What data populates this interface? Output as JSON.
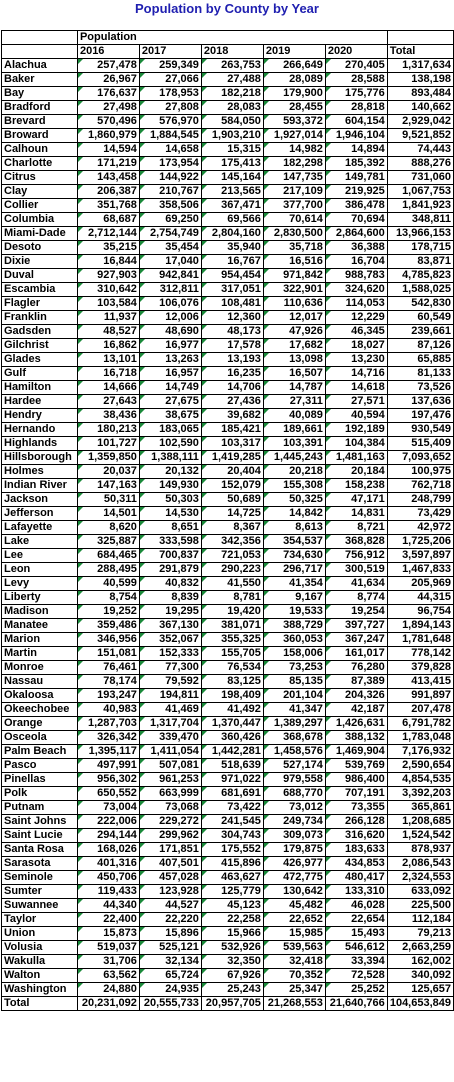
{
  "title": "Population by County by Year",
  "header": {
    "group_label": "Population",
    "years": [
      "2016",
      "2017",
      "2018",
      "2019",
      "2020"
    ],
    "total_label": "Total"
  },
  "rows": [
    {
      "county": "Alachua",
      "values": [
        "257,478",
        "259,349",
        "263,753",
        "266,649",
        "270,405"
      ],
      "total": "1,317,634"
    },
    {
      "county": "Baker",
      "values": [
        "26,967",
        "27,066",
        "27,488",
        "28,089",
        "28,588"
      ],
      "total": "138,198"
    },
    {
      "county": "Bay",
      "values": [
        "176,637",
        "178,953",
        "182,218",
        "179,900",
        "175,776"
      ],
      "total": "893,484"
    },
    {
      "county": "Bradford",
      "values": [
        "27,498",
        "27,808",
        "28,083",
        "28,455",
        "28,818"
      ],
      "total": "140,662"
    },
    {
      "county": "Brevard",
      "values": [
        "570,496",
        "576,970",
        "584,050",
        "593,372",
        "604,154"
      ],
      "total": "2,929,042"
    },
    {
      "county": "Broward",
      "values": [
        "1,860,979",
        "1,884,545",
        "1,903,210",
        "1,927,014",
        "1,946,104"
      ],
      "total": "9,521,852"
    },
    {
      "county": "Calhoun",
      "values": [
        "14,594",
        "14,658",
        "15,315",
        "14,982",
        "14,894"
      ],
      "total": "74,443"
    },
    {
      "county": "Charlotte",
      "values": [
        "171,219",
        "173,954",
        "175,413",
        "182,298",
        "185,392"
      ],
      "total": "888,276"
    },
    {
      "county": "Citrus",
      "values": [
        "143,458",
        "144,922",
        "145,164",
        "147,735",
        "149,781"
      ],
      "total": "731,060"
    },
    {
      "county": "Clay",
      "values": [
        "206,387",
        "210,767",
        "213,565",
        "217,109",
        "219,925"
      ],
      "total": "1,067,753"
    },
    {
      "county": "Collier",
      "values": [
        "351,768",
        "358,506",
        "367,471",
        "377,700",
        "386,478"
      ],
      "total": "1,841,923"
    },
    {
      "county": "Columbia",
      "values": [
        "68,687",
        "69,250",
        "69,566",
        "70,614",
        "70,694"
      ],
      "total": "348,811"
    },
    {
      "county": "Miami-Dade",
      "values": [
        "2,712,144",
        "2,754,749",
        "2,804,160",
        "2,830,500",
        "2,864,600"
      ],
      "total": "13,966,153"
    },
    {
      "county": "Desoto",
      "values": [
        "35,215",
        "35,454",
        "35,940",
        "35,718",
        "36,388"
      ],
      "total": "178,715"
    },
    {
      "county": "Dixie",
      "values": [
        "16,844",
        "17,040",
        "16,767",
        "16,516",
        "16,704"
      ],
      "total": "83,871"
    },
    {
      "county": "Duval",
      "values": [
        "927,903",
        "942,841",
        "954,454",
        "971,842",
        "988,783"
      ],
      "total": "4,785,823"
    },
    {
      "county": "Escambia",
      "values": [
        "310,642",
        "312,811",
        "317,051",
        "322,901",
        "324,620"
      ],
      "total": "1,588,025"
    },
    {
      "county": "Flagler",
      "values": [
        "103,584",
        "106,076",
        "108,481",
        "110,636",
        "114,053"
      ],
      "total": "542,830"
    },
    {
      "county": "Franklin",
      "values": [
        "11,937",
        "12,006",
        "12,360",
        "12,017",
        "12,229"
      ],
      "total": "60,549"
    },
    {
      "county": "Gadsden",
      "values": [
        "48,527",
        "48,690",
        "48,173",
        "47,926",
        "46,345"
      ],
      "total": "239,661"
    },
    {
      "county": "Gilchrist",
      "values": [
        "16,862",
        "16,977",
        "17,578",
        "17,682",
        "18,027"
      ],
      "total": "87,126"
    },
    {
      "county": "Glades",
      "values": [
        "13,101",
        "13,263",
        "13,193",
        "13,098",
        "13,230"
      ],
      "total": "65,885"
    },
    {
      "county": "Gulf",
      "values": [
        "16,718",
        "16,957",
        "16,235",
        "16,507",
        "14,716"
      ],
      "total": "81,133"
    },
    {
      "county": "Hamilton",
      "values": [
        "14,666",
        "14,749",
        "14,706",
        "14,787",
        "14,618"
      ],
      "total": "73,526"
    },
    {
      "county": "Hardee",
      "values": [
        "27,643",
        "27,675",
        "27,436",
        "27,311",
        "27,571"
      ],
      "total": "137,636"
    },
    {
      "county": "Hendry",
      "values": [
        "38,436",
        "38,675",
        "39,682",
        "40,089",
        "40,594"
      ],
      "total": "197,476"
    },
    {
      "county": "Hernando",
      "values": [
        "180,213",
        "183,065",
        "185,421",
        "189,661",
        "192,189"
      ],
      "total": "930,549"
    },
    {
      "county": "Highlands",
      "values": [
        "101,727",
        "102,590",
        "103,317",
        "103,391",
        "104,384"
      ],
      "total": "515,409"
    },
    {
      "county": "Hillsborough",
      "values": [
        "1,359,850",
        "1,388,111",
        "1,419,285",
        "1,445,243",
        "1,481,163"
      ],
      "total": "7,093,652"
    },
    {
      "county": "Holmes",
      "values": [
        "20,037",
        "20,132",
        "20,404",
        "20,218",
        "20,184"
      ],
      "total": "100,975"
    },
    {
      "county": "Indian River",
      "values": [
        "147,163",
        "149,930",
        "152,079",
        "155,308",
        "158,238"
      ],
      "total": "762,718"
    },
    {
      "county": "Jackson",
      "values": [
        "50,311",
        "50,303",
        "50,689",
        "50,325",
        "47,171"
      ],
      "total": "248,799"
    },
    {
      "county": "Jefferson",
      "values": [
        "14,501",
        "14,530",
        "14,725",
        "14,842",
        "14,831"
      ],
      "total": "73,429"
    },
    {
      "county": "Lafayette",
      "values": [
        "8,620",
        "8,651",
        "8,367",
        "8,613",
        "8,721"
      ],
      "total": "42,972"
    },
    {
      "county": "Lake",
      "values": [
        "325,887",
        "333,598",
        "342,356",
        "354,537",
        "368,828"
      ],
      "total": "1,725,206"
    },
    {
      "county": "Lee",
      "values": [
        "684,465",
        "700,837",
        "721,053",
        "734,630",
        "756,912"
      ],
      "total": "3,597,897"
    },
    {
      "county": "Leon",
      "values": [
        "288,495",
        "291,879",
        "290,223",
        "296,717",
        "300,519"
      ],
      "total": "1,467,833"
    },
    {
      "county": "Levy",
      "values": [
        "40,599",
        "40,832",
        "41,550",
        "41,354",
        "41,634"
      ],
      "total": "205,969"
    },
    {
      "county": "Liberty",
      "values": [
        "8,754",
        "8,839",
        "8,781",
        "9,167",
        "8,774"
      ],
      "total": "44,315"
    },
    {
      "county": "Madison",
      "values": [
        "19,252",
        "19,295",
        "19,420",
        "19,533",
        "19,254"
      ],
      "total": "96,754"
    },
    {
      "county": "Manatee",
      "values": [
        "359,486",
        "367,130",
        "381,071",
        "388,729",
        "397,727"
      ],
      "total": "1,894,143"
    },
    {
      "county": "Marion",
      "values": [
        "346,956",
        "352,067",
        "355,325",
        "360,053",
        "367,247"
      ],
      "total": "1,781,648"
    },
    {
      "county": "Martin",
      "values": [
        "151,081",
        "152,333",
        "155,705",
        "158,006",
        "161,017"
      ],
      "total": "778,142"
    },
    {
      "county": "Monroe",
      "values": [
        "76,461",
        "77,300",
        "76,534",
        "73,253",
        "76,280"
      ],
      "total": "379,828"
    },
    {
      "county": "Nassau",
      "values": [
        "78,174",
        "79,592",
        "83,125",
        "85,135",
        "87,389"
      ],
      "total": "413,415"
    },
    {
      "county": "Okaloosa",
      "values": [
        "193,247",
        "194,811",
        "198,409",
        "201,104",
        "204,326"
      ],
      "total": "991,897"
    },
    {
      "county": "Okeechobee",
      "values": [
        "40,983",
        "41,469",
        "41,492",
        "41,347",
        "42,187"
      ],
      "total": "207,478"
    },
    {
      "county": "Orange",
      "values": [
        "1,287,703",
        "1,317,704",
        "1,370,447",
        "1,389,297",
        "1,426,631"
      ],
      "total": "6,791,782"
    },
    {
      "county": "Osceola",
      "values": [
        "326,342",
        "339,470",
        "360,426",
        "368,678",
        "388,132"
      ],
      "total": "1,783,048"
    },
    {
      "county": "Palm Beach",
      "values": [
        "1,395,117",
        "1,411,054",
        "1,442,281",
        "1,458,576",
        "1,469,904"
      ],
      "total": "7,176,932"
    },
    {
      "county": "Pasco",
      "values": [
        "497,991",
        "507,081",
        "518,639",
        "527,174",
        "539,769"
      ],
      "total": "2,590,654"
    },
    {
      "county": "Pinellas",
      "values": [
        "956,302",
        "961,253",
        "971,022",
        "979,558",
        "986,400"
      ],
      "total": "4,854,535"
    },
    {
      "county": "Polk",
      "values": [
        "650,552",
        "663,999",
        "681,691",
        "688,770",
        "707,191"
      ],
      "total": "3,392,203"
    },
    {
      "county": "Putnam",
      "values": [
        "73,004",
        "73,068",
        "73,422",
        "73,012",
        "73,355"
      ],
      "total": "365,861"
    },
    {
      "county": "Saint Johns",
      "values": [
        "222,006",
        "229,272",
        "241,545",
        "249,734",
        "266,128"
      ],
      "total": "1,208,685"
    },
    {
      "county": "Saint Lucie",
      "values": [
        "294,144",
        "299,962",
        "304,743",
        "309,073",
        "316,620"
      ],
      "total": "1,524,542"
    },
    {
      "county": "Santa Rosa",
      "values": [
        "168,026",
        "171,851",
        "175,552",
        "179,875",
        "183,633"
      ],
      "total": "878,937"
    },
    {
      "county": "Sarasota",
      "values": [
        "401,316",
        "407,501",
        "415,896",
        "426,977",
        "434,853"
      ],
      "total": "2,086,543"
    },
    {
      "county": "Seminole",
      "values": [
        "450,706",
        "457,028",
        "463,627",
        "472,775",
        "480,417"
      ],
      "total": "2,324,553"
    },
    {
      "county": "Sumter",
      "values": [
        "119,433",
        "123,928",
        "125,779",
        "130,642",
        "133,310"
      ],
      "total": "633,092"
    },
    {
      "county": "Suwannee",
      "values": [
        "44,340",
        "44,527",
        "45,123",
        "45,482",
        "46,028"
      ],
      "total": "225,500"
    },
    {
      "county": "Taylor",
      "values": [
        "22,400",
        "22,220",
        "22,258",
        "22,652",
        "22,654"
      ],
      "total": "112,184"
    },
    {
      "county": "Union",
      "values": [
        "15,873",
        "15,896",
        "15,966",
        "15,985",
        "15,493"
      ],
      "total": "79,213"
    },
    {
      "county": "Volusia",
      "values": [
        "519,037",
        "525,121",
        "532,926",
        "539,563",
        "546,612"
      ],
      "total": "2,663,259"
    },
    {
      "county": "Wakulla",
      "values": [
        "31,706",
        "32,134",
        "32,350",
        "32,418",
        "33,394"
      ],
      "total": "162,002"
    },
    {
      "county": "Walton",
      "values": [
        "63,562",
        "65,724",
        "67,926",
        "70,352",
        "72,528"
      ],
      "total": "340,092"
    },
    {
      "county": "Washington",
      "values": [
        "24,880",
        "24,935",
        "25,243",
        "25,347",
        "25,252"
      ],
      "total": "125,657"
    }
  ],
  "totals_row": {
    "label": "Total",
    "values": [
      "20,231,092",
      "20,555,733",
      "20,957,705",
      "21,268,553",
      "21,640,766"
    ],
    "total": "104,653,849"
  },
  "colors": {
    "title": "#1f1fb0",
    "number_marker": "#1a8a3a",
    "grid": "#000000"
  }
}
